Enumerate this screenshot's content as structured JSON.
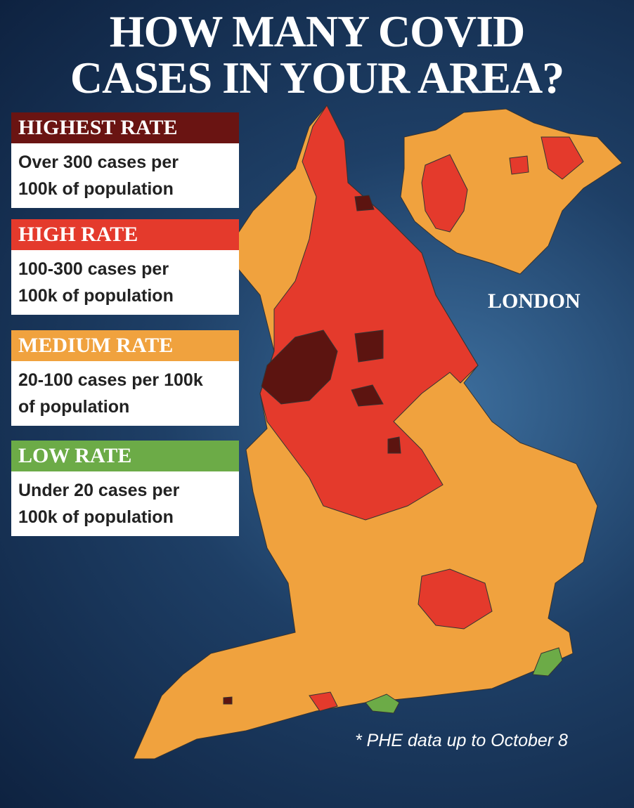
{
  "title": {
    "lines": [
      "HOW MANY COVID",
      "CASES IN YOUR AREA?"
    ]
  },
  "legend": [
    {
      "label": "HIGHEST RATE",
      "description": [
        "Over 300 cases per",
        "100k of population"
      ],
      "color": "#6a1412"
    },
    {
      "label": "HIGH RATE",
      "description": [
        "100-300 cases per",
        "100k of population"
      ],
      "color": "#e43a2c"
    },
    {
      "label": "MEDIUM RATE",
      "description": [
        "20-100 cases per 100k",
        "of population"
      ],
      "color": "#f0a23e"
    },
    {
      "label": "LOW RATE",
      "description": [
        "Under 20 cases per",
        "100k of population"
      ],
      "color": "#6cab47"
    }
  ],
  "inset_label": "LONDON",
  "footnote": "* PHE data up to October 8"
}
